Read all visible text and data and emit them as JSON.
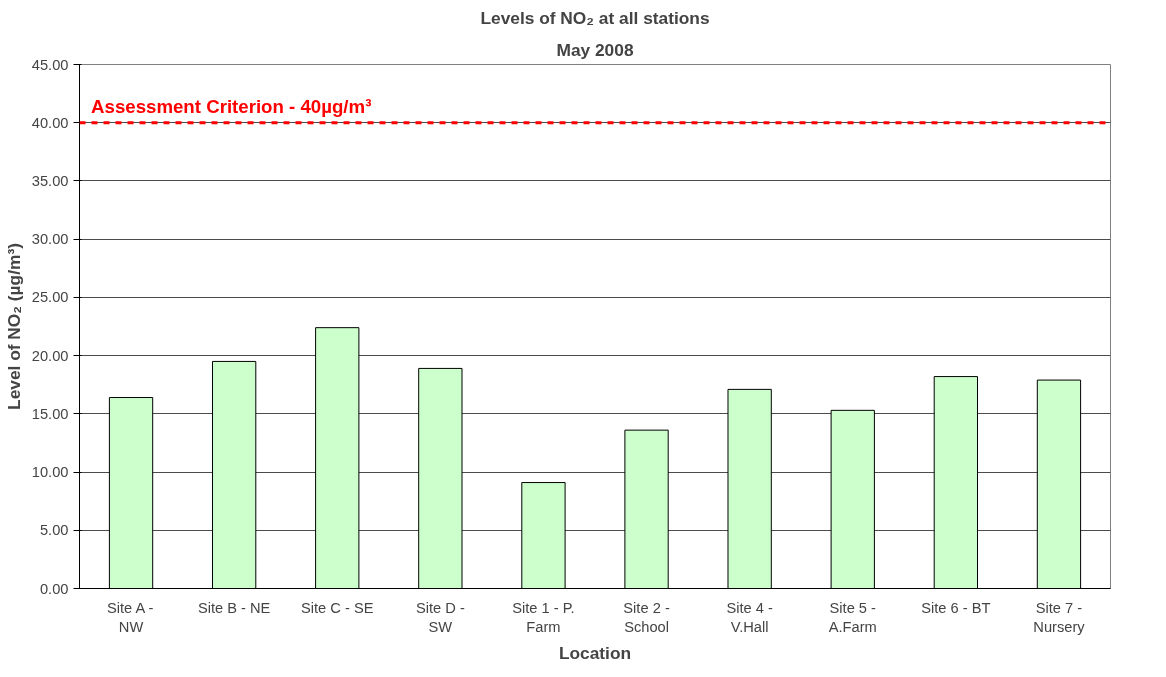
{
  "chart_data": {
    "type": "bar",
    "title": "Levels of NO₂ at all stations",
    "subtitle": "May 2008",
    "xlabel": "Location",
    "ylabel": "Level of NO₂ (µg/m³)",
    "categories": [
      "Site A -\nNW",
      "Site B - NE",
      "Site C - SE",
      "Site D -\nSW",
      "Site 1 - P.\nFarm",
      "Site 2 -\nSchool",
      "Site 4 -\nV.Hall",
      "Site 5 -\nA.Farm",
      "Site 6 - BT",
      "Site 7 -\nNursery"
    ],
    "values": [
      16.4,
      19.5,
      22.4,
      18.9,
      9.1,
      13.6,
      17.1,
      15.3,
      18.2,
      17.9
    ],
    "color": "#ccffcc",
    "ylim": [
      0,
      45
    ],
    "yticks": [
      {
        "value": 0,
        "label": "0.00"
      },
      {
        "value": 5,
        "label": "5.00"
      },
      {
        "value": 10,
        "label": "10.00"
      },
      {
        "value": 15,
        "label": "15.00"
      },
      {
        "value": 20,
        "label": "20.00"
      },
      {
        "value": 25,
        "label": "25.00"
      },
      {
        "value": 30,
        "label": "30.00"
      },
      {
        "value": 35,
        "label": "35.00"
      },
      {
        "value": 40,
        "label": "40.00"
      },
      {
        "value": 45,
        "label": "45.00"
      }
    ],
    "grid": "y",
    "ref_lines": [
      {
        "axis": "y",
        "value": 40,
        "label": "Assessment Criterion - 40µg/m³",
        "color": "#ff0000",
        "line_style": "dashed"
      }
    ]
  }
}
